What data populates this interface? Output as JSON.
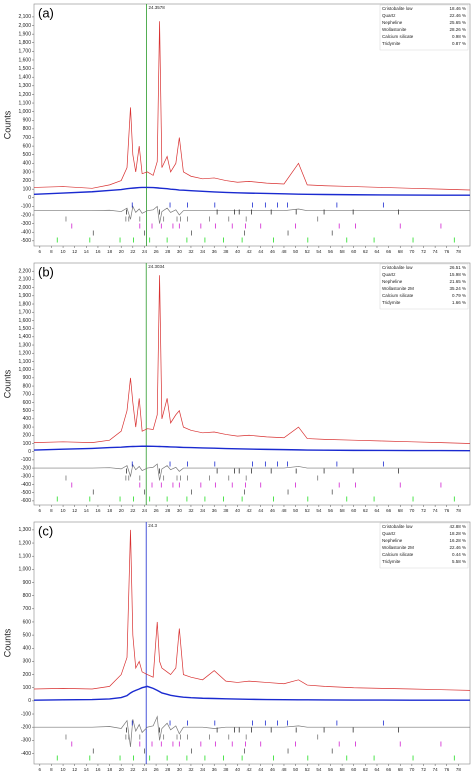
{
  "chart_data": [
    {
      "type": "line",
      "panel_label": "(a)",
      "ylabel": "Counts",
      "xlim": [
        5,
        80
      ],
      "xticks": [
        6,
        8,
        10,
        12,
        14,
        16,
        18,
        20,
        22,
        24,
        26,
        28,
        30,
        32,
        34,
        36,
        38,
        40,
        42,
        44,
        46,
        48,
        50,
        52,
        54,
        56,
        58,
        60,
        62,
        64,
        66,
        68,
        70,
        72,
        74,
        76,
        78
      ],
      "ylim": [
        -560,
        2250
      ],
      "yticks": [
        -500,
        -400,
        -300,
        -200,
        -100,
        0,
        100,
        200,
        300,
        400,
        500,
        600,
        700,
        800,
        900,
        {
          "value": 1000,
          "label": "1,000"
        },
        {
          "value": 1100,
          "label": "1,100"
        },
        {
          "value": 1200,
          "label": "1,200"
        },
        {
          "value": 1300,
          "label": "1,300"
        },
        {
          "value": 1400,
          "label": "1,400"
        },
        {
          "value": 1500,
          "label": "1,500"
        },
        {
          "value": 1600,
          "label": "1,600"
        },
        {
          "value": 1700,
          "label": "1,700"
        },
        {
          "value": 1800,
          "label": "1,800"
        },
        {
          "value": 1900,
          "label": "1,900"
        },
        {
          "value": 2000,
          "label": "2,000"
        },
        {
          "value": 2100,
          "label": "2,100"
        }
      ],
      "cursor": {
        "x": 24.3578,
        "color": "#2a9a2a"
      },
      "x": [
        5,
        10,
        15,
        18,
        20,
        21,
        21.6,
        22,
        22.5,
        23.1,
        23.6,
        24.5,
        25.5,
        26.2,
        26.6,
        27,
        27.9,
        28.5,
        29.4,
        30,
        30.7,
        32,
        34,
        36,
        38,
        40,
        42,
        45,
        48,
        50.5,
        52,
        55,
        60,
        65,
        70,
        75,
        80
      ],
      "series": [
        {
          "color": "#d83030",
          "values": [
            120,
            130,
            110,
            150,
            200,
            350,
            1050,
            500,
            300,
            600,
            280,
            300,
            260,
            420,
            2050,
            350,
            480,
            300,
            400,
            700,
            300,
            250,
            220,
            230,
            200,
            180,
            190,
            170,
            160,
            400,
            150,
            140,
            130,
            120,
            110,
            100,
            90
          ]
        },
        {
          "color": "#1a2ad0",
          "values": [
            40,
            55,
            70,
            85,
            95,
            105,
            110,
            112,
            115,
            118,
            120,
            120,
            118,
            115,
            112,
            110,
            105,
            100,
            95,
            90,
            88,
            82,
            75,
            68,
            62,
            58,
            54,
            50,
            46,
            42,
            40,
            38,
            35,
            33,
            31,
            30,
            30
          ]
        },
        {
          "color": "#777777",
          "values": [
            -150,
            -150,
            -150,
            -145,
            -160,
            -120,
            -250,
            -100,
            -170,
            -130,
            -180,
            -150,
            -140,
            -100,
            -300,
            -160,
            -120,
            -170,
            -140,
            -200,
            -150,
            -150,
            -150,
            -150,
            -150,
            -150,
            -150,
            -150,
            -150,
            -130,
            -150,
            -150,
            -150,
            -150,
            -150,
            -150,
            -150
          ]
        }
      ],
      "phases": {
        "names": [
          "Cristobalite low",
          "Quartz",
          "Nepheline",
          "Wollastonite",
          "Calcium silicate",
          "Tridymite"
        ],
        "values": [
          18.46,
          22.46,
          25.65,
          28.26,
          0.98,
          0.87
        ],
        "value_labels": [
          "18.46 %",
          "22.46 %",
          "25.65 %",
          "28.26 %",
          "0.98 %",
          "0.87 %"
        ],
        "colors": [
          "#1a2ad0",
          "#333333",
          "#777777",
          "#d020d0",
          "#555555",
          "#22dd22"
        ],
        "positions": [
          [
            21.9,
            28.4,
            31.4,
            36.1,
            42.6,
            44.8,
            46.9,
            48.6,
            57.1,
            65.1
          ],
          [
            20.9,
            26.6,
            36.5,
            39.5,
            40.3,
            42.4,
            45.8,
            50.1,
            54.9,
            59.9,
            67.7
          ],
          [
            10.5,
            20.8,
            21.3,
            23.2,
            27.3,
            29.6,
            30.2,
            31.4,
            35.2,
            38.5,
            41.5,
            53.8
          ],
          [
            11.5,
            23.2,
            25.3,
            26.9,
            28.9,
            30,
            33.7,
            36.2,
            39.1,
            41.4,
            44,
            50,
            57.5,
            60.3,
            68,
            75
          ],
          [
            15.2,
            24,
            32.1,
            41.2,
            48.7,
            56.3
          ],
          [
            9,
            14.6,
            19.8,
            22.1,
            24.9,
            27.9,
            31.3,
            34.4,
            37.6,
            40.8,
            46.2,
            52.1,
            58.8,
            63.5,
            70.2,
            77.3
          ]
        ]
      }
    },
    {
      "type": "line",
      "panel_label": "(b)",
      "ylabel": "Counts",
      "xlim": [
        5,
        80
      ],
      "xticks": [
        6,
        8,
        10,
        12,
        14,
        16,
        18,
        20,
        22,
        24,
        26,
        28,
        30,
        32,
        34,
        36,
        38,
        40,
        42,
        44,
        46,
        48,
        50,
        52,
        54,
        56,
        58,
        60,
        62,
        64,
        66,
        68,
        70,
        72,
        74,
        76,
        78
      ],
      "ylim": [
        -650,
        2300
      ],
      "yticks": [
        -600,
        -500,
        -400,
        -300,
        -200,
        -100,
        0,
        100,
        200,
        300,
        400,
        500,
        600,
        700,
        800,
        900,
        {
          "value": 1000,
          "label": "1,000"
        },
        {
          "value": 1100,
          "label": "1,100"
        },
        {
          "value": 1200,
          "label": "1,200"
        },
        {
          "value": 1300,
          "label": "1,300"
        },
        {
          "value": 1400,
          "label": "1,400"
        },
        {
          "value": 1500,
          "label": "1,500"
        },
        {
          "value": 1600,
          "label": "1,600"
        },
        {
          "value": 1700,
          "label": "1,700"
        },
        {
          "value": 1800,
          "label": "1,800"
        },
        {
          "value": 1900,
          "label": "1,900"
        },
        {
          "value": 2000,
          "label": "2,000"
        },
        {
          "value": 2100,
          "label": "2,100"
        },
        {
          "value": 2200,
          "label": "2,200"
        }
      ],
      "cursor": {
        "x": 24.3034,
        "color": "#2a9a2a"
      },
      "x": [
        5,
        10,
        15,
        18,
        20,
        21,
        21.6,
        22,
        22.5,
        23.1,
        23.6,
        24.5,
        25.5,
        26.2,
        26.6,
        27,
        27.9,
        28.5,
        29.4,
        30,
        30.7,
        32,
        34,
        36,
        38,
        40,
        42,
        45,
        48,
        50.5,
        52,
        55,
        60,
        65,
        70,
        75,
        80
      ],
      "series": [
        {
          "color": "#d83030",
          "values": [
            110,
            120,
            110,
            140,
            250,
            500,
            900,
            600,
            300,
            650,
            250,
            280,
            270,
            450,
            2150,
            400,
            650,
            350,
            450,
            500,
            300,
            260,
            230,
            240,
            210,
            190,
            200,
            180,
            170,
            300,
            160,
            150,
            140,
            130,
            120,
            110,
            100
          ]
        },
        {
          "color": "#1a2ad0",
          "values": [
            20,
            30,
            40,
            50,
            55,
            60,
            62,
            63,
            64,
            65,
            66,
            66,
            65,
            64,
            63,
            62,
            60,
            58,
            56,
            54,
            52,
            50,
            46,
            42,
            38,
            35,
            32,
            28,
            25,
            22,
            20,
            18,
            16,
            15,
            14,
            13,
            12
          ]
        },
        {
          "color": "#777777",
          "values": [
            -200,
            -200,
            -200,
            -195,
            -210,
            -170,
            -300,
            -160,
            -220,
            -180,
            -230,
            -200,
            -190,
            -150,
            -350,
            -210,
            -170,
            -220,
            -190,
            -240,
            -200,
            -200,
            -200,
            -200,
            -200,
            -200,
            -200,
            -200,
            -200,
            -180,
            -200,
            -200,
            -200,
            -200,
            -200,
            -200,
            -200
          ]
        }
      ],
      "phases": {
        "names": [
          "Cristobalite low",
          "Quartz",
          "Nepheline",
          "Wollastonite 2M",
          "Calcium silicate",
          "Tridymite"
        ],
        "values": [
          26.51,
          15.98,
          21.65,
          35.24,
          0.79,
          1.66
        ],
        "value_labels": [
          "26.51 %",
          "15.98 %",
          "21.65 %",
          "35.24 %",
          "0.79 %",
          "1.66 %"
        ],
        "colors": [
          "#1a2ad0",
          "#333333",
          "#777777",
          "#d020d0",
          "#555555",
          "#22dd22"
        ],
        "positions": [
          [
            21.9,
            28.4,
            31.4,
            36.1,
            42.6,
            44.8,
            46.9,
            48.6,
            57.1,
            65.1
          ],
          [
            20.9,
            26.6,
            36.5,
            39.5,
            40.3,
            42.4,
            45.8,
            50.1,
            54.9,
            59.9,
            67.7
          ],
          [
            10.5,
            20.8,
            21.3,
            23.2,
            27.3,
            29.6,
            30.2,
            31.4,
            35.2,
            38.5,
            41.5,
            53.8
          ],
          [
            11.5,
            23.2,
            25.3,
            26.9,
            28.9,
            30,
            33.7,
            36.2,
            39.1,
            41.4,
            44,
            50,
            57.5,
            60.3,
            68,
            75
          ],
          [
            15.2,
            24,
            32.1,
            41.2,
            48.7,
            56.3
          ],
          [
            9,
            14.6,
            19.8,
            22.1,
            24.9,
            27.9,
            31.3,
            34.4,
            37.6,
            40.8,
            46.2,
            52.1,
            58.8,
            63.5,
            70.2,
            77.3
          ]
        ]
      }
    },
    {
      "type": "line",
      "panel_label": "(c)",
      "ylabel": "Counts",
      "xlim": [
        5,
        80
      ],
      "xticks": [
        6,
        8,
        10,
        12,
        14,
        16,
        18,
        20,
        22,
        24,
        26,
        28,
        30,
        32,
        34,
        36,
        38,
        40,
        42,
        44,
        46,
        48,
        50,
        52,
        54,
        56,
        58,
        60,
        62,
        64,
        66,
        68,
        70,
        72,
        74,
        76,
        78
      ],
      "ylim": [
        -480,
        1360
      ],
      "yticks": [
        -400,
        -300,
        -200,
        -100,
        0,
        100,
        200,
        300,
        400,
        500,
        600,
        700,
        800,
        900,
        {
          "value": 1000,
          "label": "1,000"
        },
        {
          "value": 1100,
          "label": "1,100"
        },
        {
          "value": 1200,
          "label": "1,200"
        },
        {
          "value": 1300,
          "label": "1,300"
        }
      ],
      "cursor": {
        "x": 24.3,
        "color": "#1a2ad0"
      },
      "x": [
        5,
        10,
        15,
        18,
        20,
        21,
        21.6,
        22,
        22.5,
        23.1,
        23.6,
        24.5,
        25.5,
        26.2,
        26.6,
        27,
        27.9,
        28.5,
        29.4,
        30,
        30.7,
        32,
        34,
        36,
        38,
        40,
        42,
        45,
        48,
        50.5,
        52,
        55,
        60,
        65,
        70,
        75,
        80
      ],
      "series": [
        {
          "color": "#d83030",
          "values": [
            90,
            95,
            90,
            110,
            200,
            330,
            1300,
            500,
            250,
            300,
            220,
            200,
            180,
            600,
            300,
            250,
            220,
            200,
            250,
            550,
            200,
            180,
            160,
            230,
            150,
            140,
            150,
            140,
            130,
            160,
            120,
            110,
            100,
            95,
            90,
            85,
            80
          ]
        },
        {
          "color": "#1a2ad0",
          "values": [
            5,
            8,
            10,
            15,
            25,
            40,
            60,
            70,
            80,
            90,
            100,
            110,
            95,
            80,
            70,
            60,
            50,
            42,
            36,
            32,
            28,
            24,
            20,
            18,
            16,
            14,
            12,
            10,
            9,
            8,
            8,
            7,
            6,
            6,
            5,
            5,
            5
          ]
        },
        {
          "color": "#777777",
          "values": [
            -200,
            -200,
            -200,
            -195,
            -210,
            -150,
            -350,
            -140,
            -230,
            -180,
            -240,
            -200,
            -190,
            -120,
            -300,
            -210,
            -170,
            -220,
            -190,
            -250,
            -200,
            -200,
            -200,
            -210,
            -200,
            -200,
            -200,
            -200,
            -200,
            -190,
            -200,
            -200,
            -200,
            -200,
            -200,
            -200,
            -200
          ]
        }
      ],
      "phases": {
        "names": [
          "Cristobalite low",
          "Quartz",
          "Nepheline",
          "Wollastonite 2M",
          "Calcium silicate",
          "Tridymite"
        ],
        "values": [
          42.88,
          18.28,
          16.28,
          22.46,
          0.44,
          5.58
        ],
        "value_labels": [
          "42.88 %",
          "18.28 %",
          "16.28 %",
          "22.46 %",
          "0.44 %",
          "5.58 %"
        ],
        "colors": [
          "#1a2ad0",
          "#333333",
          "#777777",
          "#d020d0",
          "#555555",
          "#22dd22"
        ],
        "positions": [
          [
            21.9,
            28.4,
            31.4,
            36.1,
            42.6,
            44.8,
            46.9,
            48.6,
            57.1,
            65.1
          ],
          [
            20.9,
            26.6,
            36.5,
            39.5,
            40.3,
            42.4,
            45.8,
            50.1,
            54.9,
            59.9,
            67.7
          ],
          [
            10.5,
            20.8,
            21.3,
            23.2,
            27.3,
            29.6,
            30.2,
            31.4,
            35.2,
            38.5,
            41.5,
            53.8
          ],
          [
            11.5,
            23.2,
            25.3,
            26.9,
            28.9,
            30,
            33.7,
            36.2,
            39.1,
            41.4,
            44,
            50,
            57.5,
            60.3,
            68,
            75
          ],
          [
            15.2,
            24,
            32.1,
            41.2,
            48.7,
            56.3
          ],
          [
            9,
            14.6,
            19.8,
            22.1,
            24.9,
            27.9,
            31.3,
            34.4,
            37.6,
            40.8,
            46.2,
            52.1,
            58.8,
            63.5,
            70.2,
            77.3
          ]
        ]
      }
    }
  ]
}
